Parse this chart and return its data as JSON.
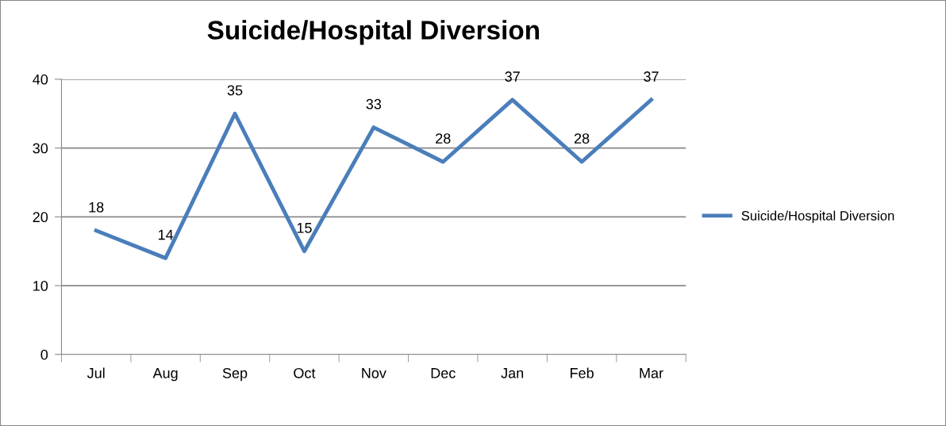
{
  "chart_data": {
    "type": "line",
    "title": "Suicide/Hospital Diversion",
    "categories": [
      "Jul",
      "Aug",
      "Sep",
      "Oct",
      "Nov",
      "Dec",
      "Jan",
      "Feb",
      "Mar"
    ],
    "series": [
      {
        "name": "Suicide/Hospital Diversion",
        "color": "#4a7ebb",
        "values": [
          18,
          14,
          35,
          15,
          33,
          28,
          37,
          28,
          37
        ]
      }
    ],
    "ylim": [
      0,
      40
    ],
    "yticks": [
      0,
      10,
      20,
      30,
      40
    ],
    "grid": "y",
    "legend": "right",
    "data_labels": true,
    "marker": "none",
    "line_style": "solid"
  }
}
